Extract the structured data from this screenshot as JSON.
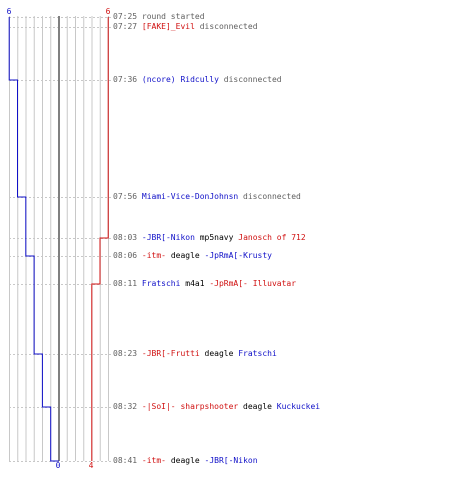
{
  "colors": {
    "blue": "#1010c8",
    "red": "#d01010",
    "black": "#000000",
    "gray": "#606060",
    "grid": "#c8c8c8",
    "center": "#808080"
  },
  "scores": {
    "blue_start": "6",
    "red_start": "6",
    "blue_end": "0",
    "red_end": "4"
  },
  "events": [
    {
      "time": "07:25",
      "parts": [
        {
          "text": "round started",
          "color": "gray"
        }
      ]
    },
    {
      "time": "07:27",
      "parts": [
        {
          "text": "[FAKE]_Evil",
          "color": "red"
        },
        {
          "text": " disconnected",
          "color": "gray"
        }
      ]
    },
    {
      "time": "07:36",
      "parts": [
        {
          "text": "(ncore) Ridcully",
          "color": "blue"
        },
        {
          "text": " disconnected",
          "color": "gray"
        }
      ]
    },
    {
      "time": "07:56",
      "parts": [
        {
          "text": "Miami-Vice-DonJohnsn",
          "color": "blue"
        },
        {
          "text": " disconnected",
          "color": "gray"
        }
      ]
    },
    {
      "time": "08:03",
      "parts": [
        {
          "text": "-JBR[-Nikon",
          "color": "blue"
        },
        {
          "text": " mp5navy ",
          "color": "black"
        },
        {
          "text": "Janosch of 712",
          "color": "red"
        }
      ]
    },
    {
      "time": "08:06",
      "parts": [
        {
          "text": "-itm-",
          "color": "red"
        },
        {
          "text": " deagle ",
          "color": "black"
        },
        {
          "text": "-JpRmA[-Krusty",
          "color": "blue"
        }
      ]
    },
    {
      "time": "08:11",
      "parts": [
        {
          "text": "Fratschi",
          "color": "blue"
        },
        {
          "text": " m4a1 ",
          "color": "black"
        },
        {
          "text": "-JpRmA[- Illuvatar",
          "color": "red"
        }
      ]
    },
    {
      "time": "08:23",
      "parts": [
        {
          "text": "-JBR[-Frutti",
          "color": "red"
        },
        {
          "text": " deagle ",
          "color": "black"
        },
        {
          "text": "Fratschi",
          "color": "blue"
        }
      ]
    },
    {
      "time": "08:32",
      "parts": [
        {
          "text": "-|SoI|- sharpshooter",
          "color": "red"
        },
        {
          "text": " deagle ",
          "color": "black"
        },
        {
          "text": "Kuckuckei",
          "color": "blue"
        }
      ]
    },
    {
      "time": "08:41",
      "parts": [
        {
          "text": "-itm-",
          "color": "red"
        },
        {
          "text": " deagle ",
          "color": "black"
        },
        {
          "text": "-JBR[-Nikon",
          "color": "blue"
        }
      ]
    }
  ],
  "blue_steps": [
    {
      "score": 6,
      "event": 0
    },
    {
      "score": 5,
      "event": 2
    },
    {
      "score": 4,
      "event": 3
    },
    {
      "score": 3,
      "event": 5
    },
    {
      "score": 2,
      "event": 7
    },
    {
      "score": 1,
      "event": 8
    },
    {
      "score": 0,
      "event": 9
    }
  ],
  "red_steps": [
    {
      "score": 6,
      "event": 0
    },
    {
      "score": 5,
      "event": 4
    },
    {
      "score": 4,
      "event": 6
    }
  ]
}
